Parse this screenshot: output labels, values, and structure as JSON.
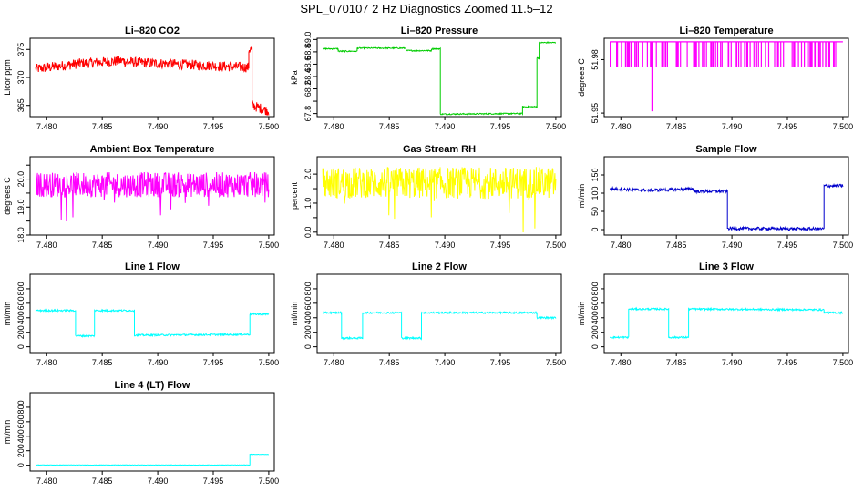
{
  "title": "SPL_070107  2 Hz Diagnostics Zoomed 11.5–12",
  "chart_data": [
    {
      "type": "line",
      "title": "Li–820 CO2",
      "ylabel": "Licor ppm",
      "color": "#ff0000",
      "xlim": [
        7.4785,
        7.5005
      ],
      "ylim": [
        363,
        377
      ],
      "yticks": [
        365,
        370,
        375
      ],
      "ytick_labels": [
        "365",
        "370",
        "375"
      ],
      "xticks": [
        7.48,
        7.485,
        7.49,
        7.495,
        7.5
      ],
      "xtick_labels": [
        "7.480",
        "7.485",
        "7.490",
        "7.495",
        "7.500"
      ],
      "noise": 0.9,
      "segments": [
        {
          "x0": 7.479,
          "x1": 7.483,
          "y0": 371.5,
          "y1": 372.5
        },
        {
          "x0": 7.483,
          "x1": 7.487,
          "y0": 372.5,
          "y1": 373
        },
        {
          "x0": 7.487,
          "x1": 7.4982,
          "y0": 372.8,
          "y1": 371.8
        },
        {
          "x0": 7.4982,
          "x1": 7.4985,
          "y0": 375,
          "y1": 375
        },
        {
          "x0": 7.4985,
          "x1": 7.5,
          "y0": 365,
          "y1": 364
        }
      ]
    },
    {
      "type": "line",
      "title": "Li–820 Pressure",
      "ylabel": "kPa",
      "color": "#00cc00",
      "xlim": [
        7.4785,
        7.5005
      ],
      "ylim": [
        67.75,
        69.02
      ],
      "yticks": [
        67.8,
        68.0,
        68.2,
        68.4,
        68.6,
        68.8,
        69.0
      ],
      "ytick_labels": [
        "67.8",
        "",
        "68.2",
        "68.4",
        "68.6",
        "68.8",
        "69.0"
      ],
      "xticks": [
        7.48,
        7.485,
        7.49,
        7.495,
        7.5
      ],
      "xtick_labels": [
        "7.480",
        "7.485",
        "7.490",
        "7.495",
        "7.500"
      ],
      "noise": 0.01,
      "segments": [
        {
          "x0": 7.479,
          "x1": 7.4804,
          "y0": 68.85,
          "y1": 68.85
        },
        {
          "x0": 7.4804,
          "x1": 7.4821,
          "y0": 68.81,
          "y1": 68.81
        },
        {
          "x0": 7.4821,
          "x1": 7.4865,
          "y0": 68.86,
          "y1": 68.86
        },
        {
          "x0": 7.4865,
          "x1": 7.4888,
          "y0": 68.82,
          "y1": 68.82
        },
        {
          "x0": 7.4888,
          "x1": 7.4896,
          "y0": 68.85,
          "y1": 68.85
        },
        {
          "x0": 7.4896,
          "x1": 7.497,
          "y0": 67.79,
          "y1": 67.8
        },
        {
          "x0": 7.497,
          "x1": 7.4983,
          "y0": 67.91,
          "y1": 67.91
        },
        {
          "x0": 7.4983,
          "x1": 7.4985,
          "y0": 68.7,
          "y1": 68.7
        },
        {
          "x0": 7.4985,
          "x1": 7.5,
          "y0": 68.95,
          "y1": 68.95
        }
      ]
    },
    {
      "type": "line",
      "title": "Li–820 Temperature",
      "ylabel": "degrees C",
      "color": "#ff00ff",
      "xlim": [
        7.4785,
        7.5005
      ],
      "ylim": [
        51.948,
        51.992
      ],
      "yticks": [
        51.95,
        51.98
      ],
      "ytick_labels": [
        "51.95",
        "51.98"
      ],
      "xticks": [
        7.48,
        7.485,
        7.49,
        7.495,
        7.5
      ],
      "xtick_labels": [
        "7.480",
        "7.485",
        "7.490",
        "7.495",
        "7.500"
      ],
      "style": "spikes",
      "base": 51.99,
      "low": 51.976,
      "dip_x": 7.4828,
      "dip_y": 51.951,
      "spike_count": 110
    },
    {
      "type": "line",
      "title": "Ambient Box Temperature",
      "ylabel": "degrees C",
      "color": "#ff00ff",
      "xlim": [
        7.4785,
        7.5005
      ],
      "ylim": [
        18.0,
        20.8
      ],
      "yticks": [
        18.0,
        18.5,
        19.0,
        19.5,
        20.0,
        20.5
      ],
      "ytick_labels": [
        "18.0",
        "",
        "19.0",
        "",
        "20.0",
        ""
      ],
      "xticks": [
        7.48,
        7.485,
        7.49,
        7.495,
        7.5
      ],
      "xtick_labels": [
        "7.480",
        "7.485",
        "7.490",
        "7.495",
        "7.500"
      ],
      "noise": 0.45,
      "downspikes": 1.1,
      "segments": [
        {
          "x0": 7.479,
          "x1": 7.5,
          "y0": 19.8,
          "y1": 19.8
        }
      ]
    },
    {
      "type": "line",
      "title": "Gas Stream RH",
      "ylabel": "percent",
      "color": "#ffff00",
      "xlim": [
        7.4785,
        7.5005
      ],
      "ylim": [
        -0.1,
        2.6
      ],
      "yticks": [
        0.0,
        0.5,
        1.0,
        1.5,
        2.0
      ],
      "ytick_labels": [
        "0.0",
        "",
        "1.0",
        "",
        "2.0"
      ],
      "xticks": [
        7.48,
        7.485,
        7.49,
        7.495,
        7.5
      ],
      "xtick_labels": [
        "7.480",
        "7.485",
        "7.490",
        "7.495",
        "7.500"
      ],
      "noise": 0.55,
      "downspikes": 1.4,
      "segments": [
        {
          "x0": 7.479,
          "x1": 7.5,
          "y0": 1.7,
          "y1": 1.7
        }
      ]
    },
    {
      "type": "line",
      "title": "Sample Flow",
      "ylabel": "ml/min",
      "color": "#0000cc",
      "xlim": [
        7.4785,
        7.5005
      ],
      "ylim": [
        -15,
        200
      ],
      "yticks": [
        0,
        50,
        100,
        150
      ],
      "ytick_labels": [
        "0",
        "50",
        "100",
        "150"
      ],
      "xticks": [
        7.48,
        7.485,
        7.49,
        7.495,
        7.5
      ],
      "xtick_labels": [
        "7.480",
        "7.485",
        "7.490",
        "7.495",
        "7.500"
      ],
      "noise": 4,
      "segments": [
        {
          "x0": 7.479,
          "x1": 7.4825,
          "y0": 112,
          "y1": 108
        },
        {
          "x0": 7.4825,
          "x1": 7.4866,
          "y0": 108,
          "y1": 112
        },
        {
          "x0": 7.4866,
          "x1": 7.4896,
          "y0": 105,
          "y1": 105
        },
        {
          "x0": 7.4896,
          "x1": 7.4983,
          "y0": 3,
          "y1": 2
        },
        {
          "x0": 7.4983,
          "x1": 7.5,
          "y0": 120,
          "y1": 120
        }
      ]
    },
    {
      "type": "line",
      "title": "Line 1 Flow",
      "ylabel": "ml/min",
      "color": "#00ffff",
      "xlim": [
        7.4785,
        7.5005
      ],
      "ylim": [
        -80,
        1000
      ],
      "yticks": [
        0,
        200,
        400,
        600,
        800
      ],
      "ytick_labels": [
        "0",
        "200",
        "400",
        "600",
        "800"
      ],
      "xticks": [
        7.48,
        7.485,
        7.49,
        7.495,
        7.5
      ],
      "xtick_labels": [
        "7.480",
        "7.485",
        "7.490",
        "7.495",
        "7.500"
      ],
      "noise": 12,
      "segments": [
        {
          "x0": 7.479,
          "x1": 7.4826,
          "y0": 500,
          "y1": 500
        },
        {
          "x0": 7.4826,
          "x1": 7.4843,
          "y0": 150,
          "y1": 150
        },
        {
          "x0": 7.4843,
          "x1": 7.4879,
          "y0": 500,
          "y1": 500
        },
        {
          "x0": 7.4879,
          "x1": 7.4983,
          "y0": 160,
          "y1": 170
        },
        {
          "x0": 7.4983,
          "x1": 7.5,
          "y0": 450,
          "y1": 450
        }
      ]
    },
    {
      "type": "line",
      "title": "Line 2 Flow",
      "ylabel": "ml/min",
      "color": "#00ffff",
      "xlim": [
        7.4785,
        7.5005
      ],
      "ylim": [
        -80,
        1000
      ],
      "yticks": [
        0,
        200,
        400,
        600,
        800
      ],
      "ytick_labels": [
        "0",
        "200",
        "400",
        "600",
        "800"
      ],
      "xticks": [
        7.48,
        7.485,
        7.49,
        7.495,
        7.5
      ],
      "xtick_labels": [
        "7.480",
        "7.485",
        "7.490",
        "7.495",
        "7.500"
      ],
      "noise": 12,
      "segments": [
        {
          "x0": 7.479,
          "x1": 7.4807,
          "y0": 470,
          "y1": 470
        },
        {
          "x0": 7.4807,
          "x1": 7.4826,
          "y0": 120,
          "y1": 120
        },
        {
          "x0": 7.4826,
          "x1": 7.4861,
          "y0": 470,
          "y1": 470
        },
        {
          "x0": 7.4861,
          "x1": 7.4879,
          "y0": 120,
          "y1": 120
        },
        {
          "x0": 7.4879,
          "x1": 7.4983,
          "y0": 470,
          "y1": 470
        },
        {
          "x0": 7.4983,
          "x1": 7.5,
          "y0": 400,
          "y1": 400
        }
      ]
    },
    {
      "type": "line",
      "title": "Line 3 Flow",
      "ylabel": "ml/min",
      "color": "#00ffff",
      "xlim": [
        7.4785,
        7.5005
      ],
      "ylim": [
        -80,
        1000
      ],
      "yticks": [
        0,
        200,
        400,
        600,
        800
      ],
      "ytick_labels": [
        "0",
        "200",
        "400",
        "600",
        "800"
      ],
      "xticks": [
        7.48,
        7.485,
        7.49,
        7.495,
        7.5
      ],
      "xtick_labels": [
        "7.480",
        "7.485",
        "7.490",
        "7.495",
        "7.500"
      ],
      "noise": 12,
      "segments": [
        {
          "x0": 7.479,
          "x1": 7.4807,
          "y0": 130,
          "y1": 130
        },
        {
          "x0": 7.4807,
          "x1": 7.4843,
          "y0": 520,
          "y1": 520
        },
        {
          "x0": 7.4843,
          "x1": 7.4861,
          "y0": 130,
          "y1": 130
        },
        {
          "x0": 7.4861,
          "x1": 7.4983,
          "y0": 520,
          "y1": 510
        },
        {
          "x0": 7.4983,
          "x1": 7.5,
          "y0": 470,
          "y1": 470
        }
      ]
    },
    {
      "type": "line",
      "title": "Line 4 (LT) Flow",
      "ylabel": "ml/min",
      "color": "#00ffff",
      "xlim": [
        7.4785,
        7.5005
      ],
      "ylim": [
        -80,
        1000
      ],
      "yticks": [
        0,
        200,
        400,
        600,
        800
      ],
      "ytick_labels": [
        "0",
        "200",
        "400",
        "600",
        "800"
      ],
      "xticks": [
        7.48,
        7.485,
        7.49,
        7.495,
        7.5
      ],
      "xtick_labels": [
        "7.480",
        "7.485",
        "7.490",
        "7.495",
        "7.500"
      ],
      "noise": 3,
      "segments": [
        {
          "x0": 7.479,
          "x1": 7.4983,
          "y0": 3,
          "y1": 3
        },
        {
          "x0": 7.4983,
          "x1": 7.5,
          "y0": 150,
          "y1": 150
        }
      ]
    }
  ]
}
